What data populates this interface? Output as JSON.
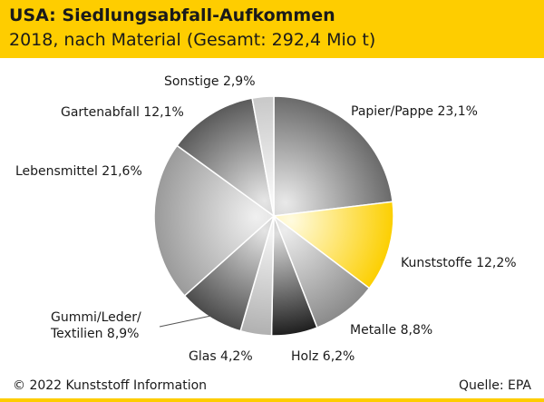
{
  "header": {
    "title": "USA: Siedlungsabfall-Aufkommen",
    "subtitle": "2018, nach Material (Gesamt: 292,4 Mio t)"
  },
  "footer": {
    "copyright": "© 2022 Kunststoff Information",
    "source": "Quelle: EPA"
  },
  "colors": {
    "accent": "#fecd00",
    "highlight_slice": "#fccf00"
  },
  "chart_data": {
    "type": "pie",
    "title": "USA: Siedlungsabfall-Aufkommen",
    "subtitle": "2018, nach Material (Gesamt: 292,4 Mio t)",
    "unit": "%",
    "slices": [
      {
        "label": "Papier/Pappe 23,1%",
        "value": 23.1,
        "color": "#6a6a6a",
        "highlight": false
      },
      {
        "label": "Kunststoffe 12,2%",
        "value": 12.2,
        "color": "#fccf00",
        "highlight": true
      },
      {
        "label": "Metalle 8,8%",
        "value": 8.8,
        "color": "#8a8a8a",
        "highlight": false
      },
      {
        "label": "Holz 6,2%",
        "value": 6.2,
        "color": "#1e1e1e",
        "highlight": false
      },
      {
        "label": "Glas 4,2%",
        "value": 4.2,
        "color": "#b0b0b0",
        "highlight": false
      },
      {
        "label": "Gummi/Leder/\nTextilien 8,9%",
        "value": 8.9,
        "color": "#4a4a4a",
        "highlight": false
      },
      {
        "label": "Lebensmittel 21,6%",
        "value": 21.6,
        "color": "#9a9a9a",
        "highlight": false
      },
      {
        "label": "Gartenabfall 12,1%",
        "value": 12.1,
        "color": "#5a5a5a",
        "highlight": false
      },
      {
        "label": "Sonstige 2,9%",
        "value": 2.9,
        "color": "#c8c8c8",
        "highlight": false
      }
    ]
  }
}
